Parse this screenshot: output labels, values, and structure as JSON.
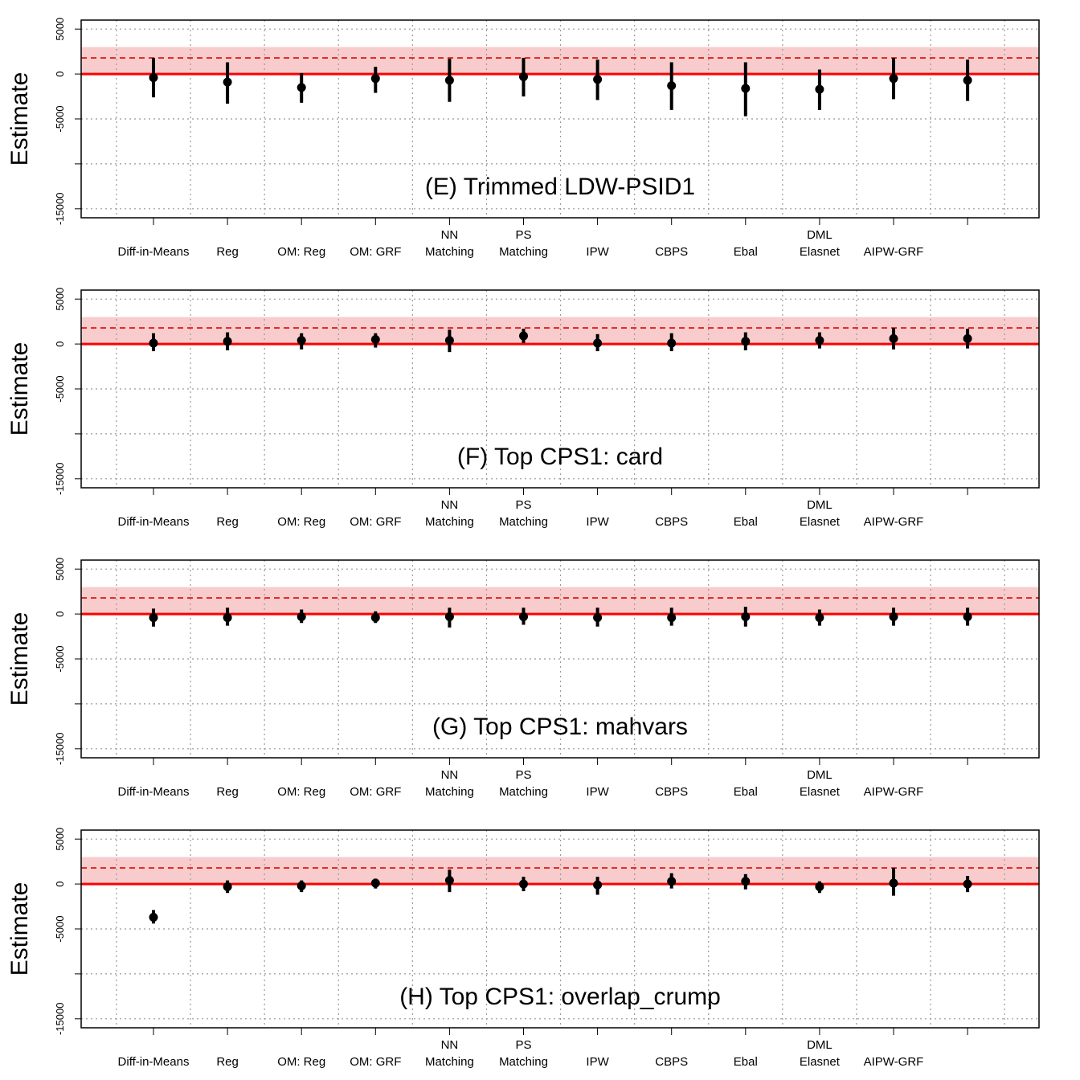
{
  "common": {
    "ylabel": "Estimate",
    "y_ticks": [
      5000,
      0,
      -5000,
      -10000,
      -15000
    ],
    "y_tick_labels": [
      "5000",
      "0",
      "-5000",
      "",
      "-15000"
    ],
    "ylim": [
      -16000,
      6000
    ],
    "reference_estimate": 1794,
    "reference_ci": [
      0,
      3000
    ],
    "zero_line": 0,
    "grid": true,
    "colors": {
      "reference_band": "#f8cccc",
      "reference_line": "#e00000",
      "zero_line": "#ff0000",
      "points": "#000000",
      "grid": "#999999"
    }
  },
  "chart_data": [
    {
      "type": "scatter",
      "panel_label": "(E) Trimmed LDW-PSID1",
      "categories": [
        [
          "Diff-in-Means"
        ],
        [
          "Reg"
        ],
        [
          "OM: Reg"
        ],
        [
          "OM: GRF"
        ],
        [
          "NN",
          "Matching"
        ],
        [
          "PS",
          "Matching"
        ],
        [
          "IPW"
        ],
        [
          "CBPS"
        ],
        [
          "Ebal"
        ],
        [
          "DML",
          "Elasnet"
        ],
        [
          "AIPW-GRF"
        ],
        [
          ""
        ]
      ],
      "estimates": [
        -400,
        -900,
        -1500,
        -500,
        -700,
        -300,
        -600,
        -1300,
        -1600,
        -1700,
        -500,
        -700
      ],
      "ci_low": [
        -2600,
        -3300,
        -3200,
        -2100,
        -3100,
        -2500,
        -2900,
        -4000,
        -4700,
        -4000,
        -2800,
        -3000
      ],
      "ci_high": [
        1800,
        1300,
        100,
        800,
        1700,
        1800,
        1600,
        1300,
        1300,
        500,
        1800,
        1600
      ]
    },
    {
      "type": "scatter",
      "panel_label": "(F) Top CPS1: card",
      "categories": [
        [
          "Diff-in-Means"
        ],
        [
          "Reg"
        ],
        [
          "OM: Reg"
        ],
        [
          "OM: GRF"
        ],
        [
          "NN",
          "Matching"
        ],
        [
          "PS",
          "Matching"
        ],
        [
          "IPW"
        ],
        [
          "CBPS"
        ],
        [
          "Ebal"
        ],
        [
          "DML",
          "Elasnet"
        ],
        [
          "AIPW-GRF"
        ],
        [
          ""
        ]
      ],
      "estimates": [
        100,
        300,
        400,
        500,
        400,
        900,
        100,
        100,
        300,
        400,
        600,
        600
      ],
      "ci_low": [
        -800,
        -700,
        -600,
        -400,
        -900,
        100,
        -800,
        -800,
        -700,
        -500,
        -600,
        -500
      ],
      "ci_high": [
        1200,
        1300,
        1200,
        1200,
        1600,
        1700,
        1100,
        1200,
        1300,
        1300,
        1800,
        1700
      ]
    },
    {
      "type": "scatter",
      "panel_label": "(G) Top CPS1: mahvars",
      "categories": [
        [
          "Diff-in-Means"
        ],
        [
          "Reg"
        ],
        [
          "OM: Reg"
        ],
        [
          "OM: GRF"
        ],
        [
          "NN",
          "Matching"
        ],
        [
          "PS",
          "Matching"
        ],
        [
          "IPW"
        ],
        [
          "CBPS"
        ],
        [
          "Ebal"
        ],
        [
          "DML",
          "Elasnet"
        ],
        [
          "AIPW-GRF"
        ],
        [
          ""
        ]
      ],
      "estimates": [
        -400,
        -400,
        -300,
        -400,
        -300,
        -300,
        -400,
        -400,
        -300,
        -400,
        -300,
        -300
      ],
      "ci_low": [
        -1400,
        -1300,
        -1000,
        -1000,
        -1500,
        -1200,
        -1400,
        -1300,
        -1400,
        -1300,
        -1300,
        -1300
      ],
      "ci_high": [
        600,
        700,
        500,
        300,
        700,
        700,
        700,
        700,
        800,
        500,
        700,
        700
      ]
    },
    {
      "type": "scatter",
      "panel_label": "(H) Top CPS1: overlap_crump",
      "categories": [
        [
          "Diff-in-Means"
        ],
        [
          "Reg"
        ],
        [
          "OM: Reg"
        ],
        [
          "OM: GRF"
        ],
        [
          "NN",
          "Matching"
        ],
        [
          "PS",
          "Matching"
        ],
        [
          "IPW"
        ],
        [
          "CBPS"
        ],
        [
          "Ebal"
        ],
        [
          "DML",
          "Elasnet"
        ],
        [
          "AIPW-GRF"
        ],
        [
          ""
        ]
      ],
      "estimates": [
        -3700,
        -300,
        -200,
        100,
        400,
        0,
        -100,
        300,
        300,
        -300,
        100,
        0
      ],
      "ci_low": [
        -4400,
        -1000,
        -900,
        -500,
        -900,
        -800,
        -1200,
        -500,
        -600,
        -1000,
        -1300,
        -900
      ],
      "ci_high": [
        -2900,
        400,
        400,
        600,
        1600,
        800,
        800,
        1200,
        1100,
        300,
        1800,
        900
      ]
    }
  ]
}
